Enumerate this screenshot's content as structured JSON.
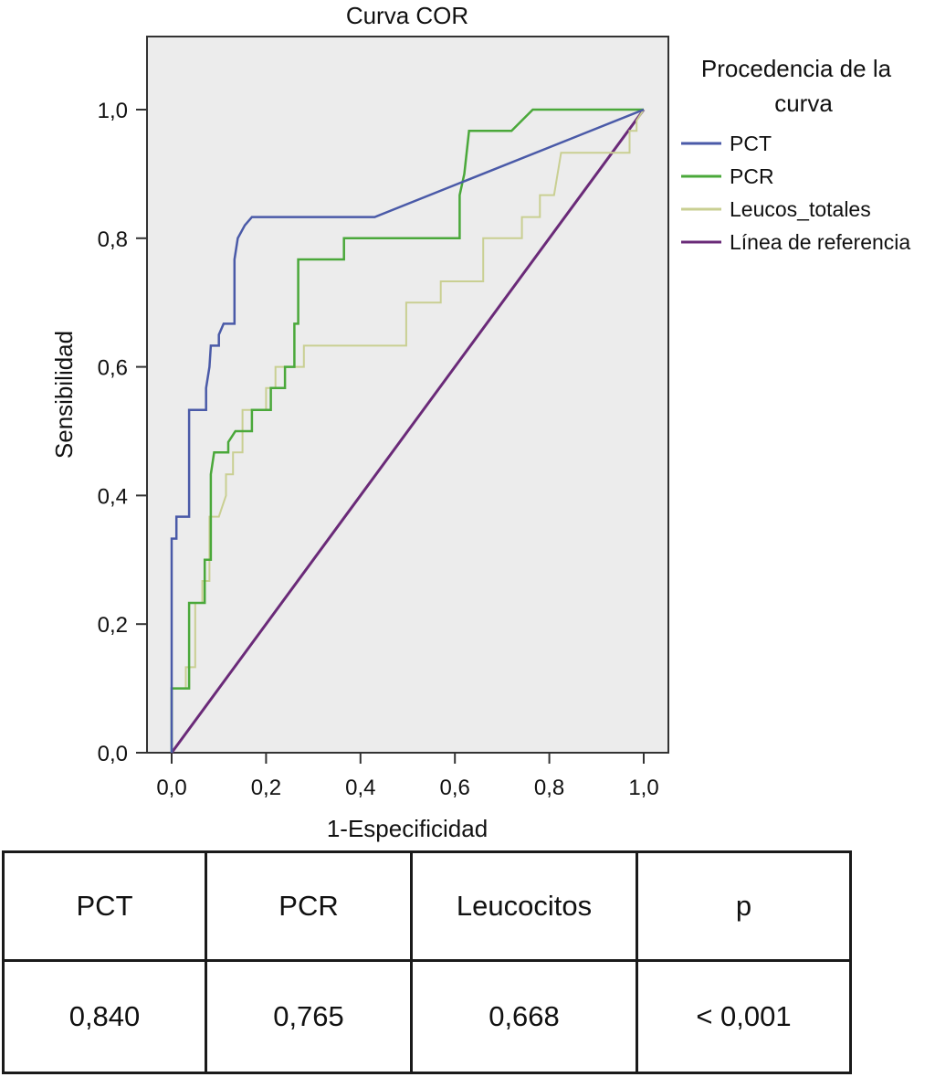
{
  "chart_data": {
    "type": "line",
    "title": "Curva COR",
    "xlabel": "1-Especificidad",
    "ylabel": "Sensibilidad",
    "xlim": [
      0,
      1
    ],
    "ylim": [
      0,
      1
    ],
    "x_ticks": [
      "0,0",
      "0,2",
      "0,4",
      "0,6",
      "0,8",
      "1,0"
    ],
    "y_ticks": [
      "0,0",
      "0,2",
      "0,4",
      "0,6",
      "0,8",
      "1,0"
    ],
    "x_tick_values": [
      0,
      0.2,
      0.4,
      0.6,
      0.8,
      1.0
    ],
    "y_tick_values": [
      0,
      0.2,
      0.4,
      0.6,
      0.8,
      1.0
    ],
    "grid": false,
    "legend": {
      "title": "Procedencia de la curva",
      "title_lines": [
        "Procedencia de la",
        "curva"
      ],
      "placement": "right"
    },
    "series": [
      {
        "name": "PCT",
        "color": "#4a5aa8",
        "points": [
          [
            0,
            0
          ],
          [
            0,
            0.1
          ],
          [
            0,
            0.333
          ],
          [
            0.01,
            0.333
          ],
          [
            0.01,
            0.367
          ],
          [
            0.037,
            0.367
          ],
          [
            0.037,
            0.533
          ],
          [
            0.073,
            0.533
          ],
          [
            0.073,
            0.567
          ],
          [
            0.08,
            0.6
          ],
          [
            0.083,
            0.633
          ],
          [
            0.1,
            0.633
          ],
          [
            0.1,
            0.65
          ],
          [
            0.11,
            0.667
          ],
          [
            0.133,
            0.667
          ],
          [
            0.133,
            0.767
          ],
          [
            0.14,
            0.8
          ],
          [
            0.155,
            0.82
          ],
          [
            0.17,
            0.833
          ],
          [
            0.43,
            0.833
          ],
          [
            1.0,
            1.0
          ]
        ]
      },
      {
        "name": "PCR",
        "color": "#4aa83a",
        "points": [
          [
            0,
            0
          ],
          [
            0,
            0.1
          ],
          [
            0.037,
            0.1
          ],
          [
            0.037,
            0.233
          ],
          [
            0.07,
            0.233
          ],
          [
            0.07,
            0.3
          ],
          [
            0.083,
            0.3
          ],
          [
            0.083,
            0.433
          ],
          [
            0.09,
            0.467
          ],
          [
            0.12,
            0.467
          ],
          [
            0.12,
            0.483
          ],
          [
            0.135,
            0.5
          ],
          [
            0.17,
            0.5
          ],
          [
            0.17,
            0.533
          ],
          [
            0.21,
            0.533
          ],
          [
            0.21,
            0.567
          ],
          [
            0.24,
            0.567
          ],
          [
            0.24,
            0.6
          ],
          [
            0.26,
            0.6
          ],
          [
            0.26,
            0.667
          ],
          [
            0.268,
            0.667
          ],
          [
            0.268,
            0.767
          ],
          [
            0.365,
            0.767
          ],
          [
            0.365,
            0.8
          ],
          [
            0.61,
            0.8
          ],
          [
            0.61,
            0.867
          ],
          [
            0.62,
            0.9
          ],
          [
            0.63,
            0.967
          ],
          [
            0.72,
            0.967
          ],
          [
            0.765,
            1.0
          ],
          [
            1.0,
            1.0
          ]
        ]
      },
      {
        "name": "Leucos_totales",
        "color": "#c9cf92",
        "points": [
          [
            0,
            0
          ],
          [
            0,
            0.1
          ],
          [
            0.03,
            0.1
          ],
          [
            0.03,
            0.133
          ],
          [
            0.05,
            0.133
          ],
          [
            0.05,
            0.233
          ],
          [
            0.065,
            0.233
          ],
          [
            0.065,
            0.267
          ],
          [
            0.08,
            0.267
          ],
          [
            0.08,
            0.367
          ],
          [
            0.1,
            0.367
          ],
          [
            0.115,
            0.4
          ],
          [
            0.115,
            0.433
          ],
          [
            0.13,
            0.433
          ],
          [
            0.13,
            0.467
          ],
          [
            0.15,
            0.467
          ],
          [
            0.15,
            0.533
          ],
          [
            0.2,
            0.533
          ],
          [
            0.2,
            0.567
          ],
          [
            0.22,
            0.567
          ],
          [
            0.22,
            0.6
          ],
          [
            0.28,
            0.6
          ],
          [
            0.28,
            0.633
          ],
          [
            0.497,
            0.633
          ],
          [
            0.497,
            0.7
          ],
          [
            0.57,
            0.7
          ],
          [
            0.57,
            0.733
          ],
          [
            0.66,
            0.733
          ],
          [
            0.66,
            0.8
          ],
          [
            0.742,
            0.8
          ],
          [
            0.742,
            0.833
          ],
          [
            0.78,
            0.833
          ],
          [
            0.78,
            0.867
          ],
          [
            0.81,
            0.867
          ],
          [
            0.825,
            0.933
          ],
          [
            0.97,
            0.933
          ],
          [
            0.97,
            0.967
          ],
          [
            0.985,
            0.967
          ],
          [
            0.985,
            0.983
          ],
          [
            1.0,
            1.0
          ]
        ]
      },
      {
        "name": "Línea de referencia",
        "color": "#6a2a78",
        "points": [
          [
            0,
            0
          ],
          [
            1,
            1
          ]
        ]
      }
    ]
  },
  "table": {
    "headers": [
      "PCT",
      "PCR",
      "Leucocitos",
      "p"
    ],
    "values": [
      "0,840",
      "0,765",
      "0,668",
      "< 0,001"
    ]
  }
}
